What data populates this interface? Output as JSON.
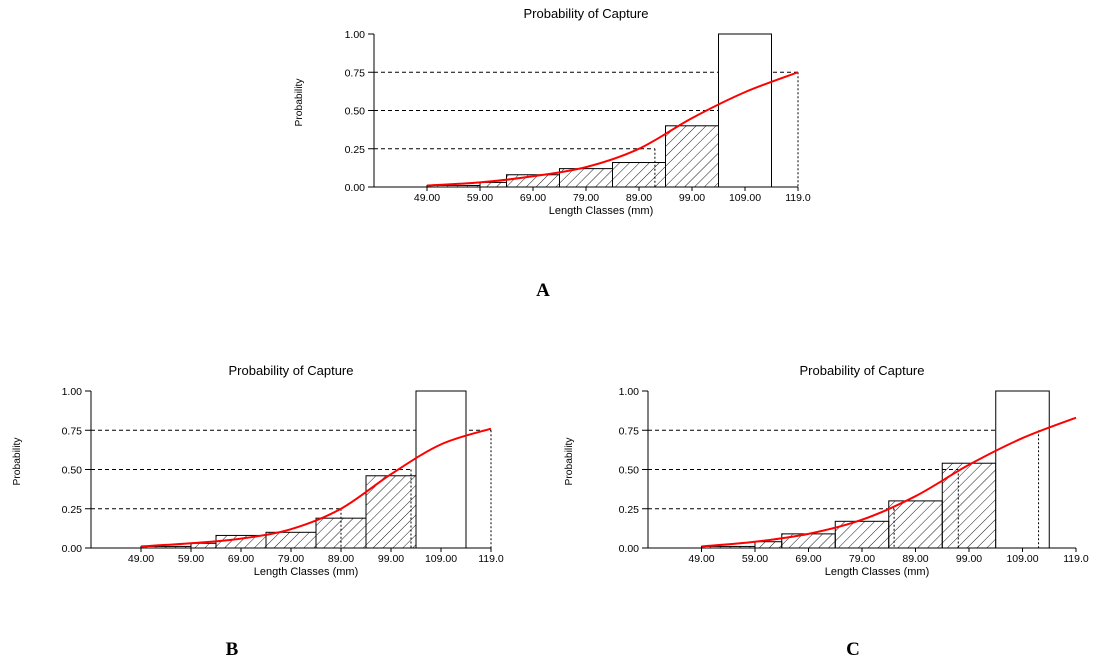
{
  "chart_data": [
    {
      "panel": "A",
      "type": "bar",
      "title": "Probability of Capture",
      "xlabel": "Length Classes (mm)",
      "ylabel": "Probability",
      "x_tick_labels": [
        "49.00",
        "59.00",
        "69.00",
        "79.00",
        "89.00",
        "99.00",
        "109.00",
        "119.0"
      ],
      "y_tick_labels": [
        "0.00",
        "0.25",
        "0.50",
        "0.75",
        "1.00"
      ],
      "ylim": [
        0,
        1
      ],
      "bins": [
        {
          "from": 49,
          "to": 59,
          "value": 0.01,
          "hatched": true
        },
        {
          "from": 59,
          "to": 64,
          "value": 0.03,
          "hatched": true
        },
        {
          "from": 64,
          "to": 74,
          "value": 0.08,
          "hatched": true
        },
        {
          "from": 74,
          "to": 84,
          "value": 0.12,
          "hatched": true
        },
        {
          "from": 84,
          "to": 94,
          "value": 0.16,
          "hatched": true
        },
        {
          "from": 94,
          "to": 104,
          "value": 0.4,
          "hatched": true
        },
        {
          "from": 104,
          "to": 114,
          "value": 1.0,
          "hatched": false
        }
      ],
      "curve": {
        "x": [
          49,
          59,
          69,
          79,
          89,
          99,
          109,
          119
        ],
        "y": [
          0.01,
          0.03,
          0.07,
          0.13,
          0.25,
          0.45,
          0.62,
          0.75
        ],
        "color": "#ff0000"
      },
      "reference_levels": [
        0.25,
        0.5,
        0.75
      ],
      "reference_x": [
        92,
        104,
        119
      ]
    },
    {
      "panel": "B",
      "type": "bar",
      "title": "Probability of Capture",
      "xlabel": "Length Classes (mm)",
      "ylabel": "Probability",
      "x_tick_labels": [
        "49.00",
        "59.00",
        "69.00",
        "79.00",
        "89.00",
        "99.00",
        "109.00",
        "119.0"
      ],
      "y_tick_labels": [
        "0.00",
        "0.25",
        "0.50",
        "0.75",
        "1.00"
      ],
      "ylim": [
        0,
        1
      ],
      "bins": [
        {
          "from": 49,
          "to": 59,
          "value": 0.01,
          "hatched": true
        },
        {
          "from": 59,
          "to": 64,
          "value": 0.03,
          "hatched": true
        },
        {
          "from": 64,
          "to": 74,
          "value": 0.08,
          "hatched": true
        },
        {
          "from": 74,
          "to": 84,
          "value": 0.1,
          "hatched": true
        },
        {
          "from": 84,
          "to": 94,
          "value": 0.19,
          "hatched": true
        },
        {
          "from": 94,
          "to": 104,
          "value": 0.46,
          "hatched": true
        },
        {
          "from": 104,
          "to": 114,
          "value": 1.0,
          "hatched": false
        }
      ],
      "curve": {
        "x": [
          49,
          59,
          69,
          79,
          89,
          99,
          109,
          119
        ],
        "y": [
          0.01,
          0.03,
          0.06,
          0.12,
          0.25,
          0.47,
          0.66,
          0.76
        ],
        "color": "#ff0000"
      },
      "reference_levels": [
        0.25,
        0.5,
        0.75
      ],
      "reference_x": [
        89,
        103,
        119
      ]
    },
    {
      "panel": "C",
      "type": "bar",
      "title": "Probability of Capture",
      "xlabel": "Length Classes (mm)",
      "ylabel": "Probability",
      "x_tick_labels": [
        "49.00",
        "59.00",
        "69.00",
        "79.00",
        "89.00",
        "99.00",
        "109.00",
        "119.0"
      ],
      "y_tick_labels": [
        "0.00",
        "0.25",
        "0.50",
        "0.75",
        "1.00"
      ],
      "ylim": [
        0,
        1
      ],
      "bins": [
        {
          "from": 49,
          "to": 59,
          "value": 0.01,
          "hatched": true
        },
        {
          "from": 59,
          "to": 64,
          "value": 0.04,
          "hatched": true
        },
        {
          "from": 64,
          "to": 74,
          "value": 0.09,
          "hatched": true
        },
        {
          "from": 74,
          "to": 84,
          "value": 0.17,
          "hatched": true
        },
        {
          "from": 84,
          "to": 94,
          "value": 0.3,
          "hatched": true
        },
        {
          "from": 94,
          "to": 104,
          "value": 0.54,
          "hatched": true
        },
        {
          "from": 104,
          "to": 114,
          "value": 1.0,
          "hatched": false
        }
      ],
      "curve": {
        "x": [
          49,
          59,
          69,
          79,
          89,
          99,
          109,
          119
        ],
        "y": [
          0.01,
          0.04,
          0.09,
          0.18,
          0.33,
          0.53,
          0.7,
          0.83
        ],
        "color": "#ff0000"
      },
      "reference_levels": [
        0.25,
        0.5,
        0.75
      ],
      "reference_x": [
        85,
        97,
        112
      ]
    }
  ]
}
